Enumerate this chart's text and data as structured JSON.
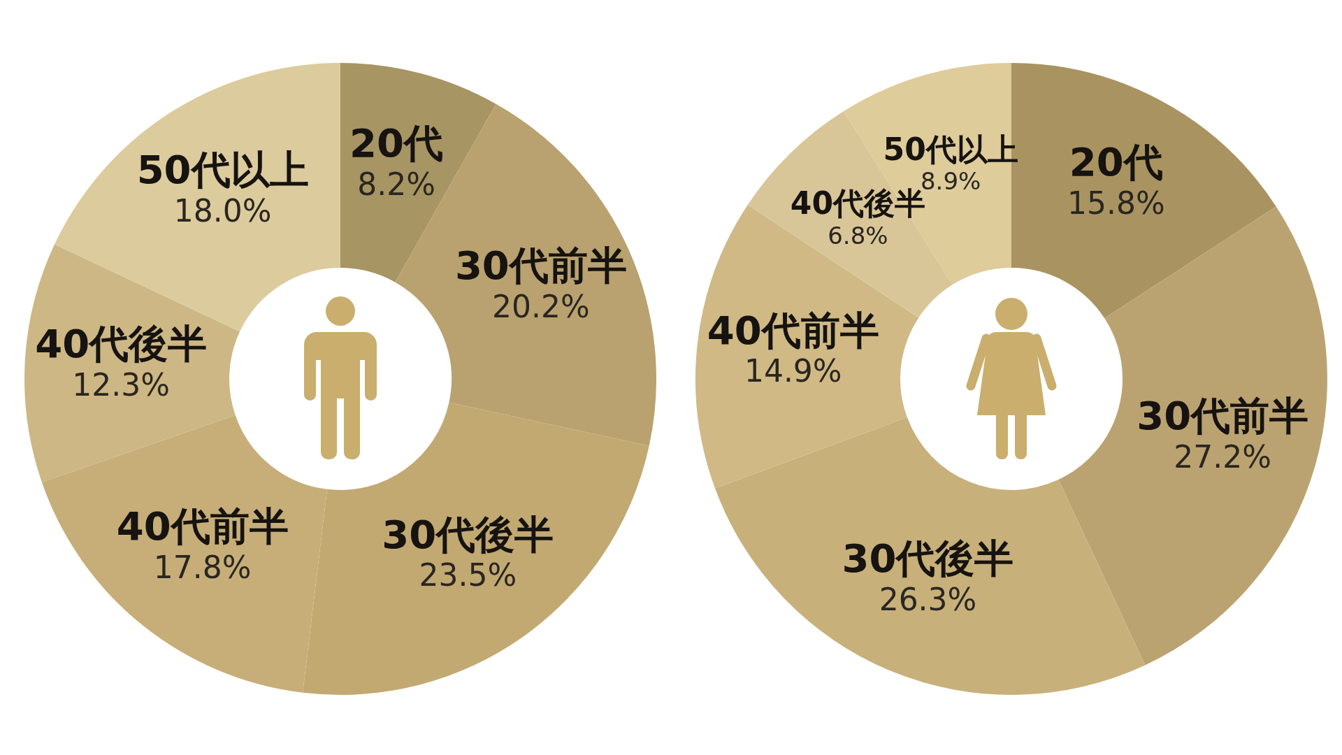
{
  "chart_data": [
    {
      "type": "donut",
      "categories": [
        "20代",
        "30代前半",
        "30代後半",
        "40代前半",
        "40代後半",
        "50代以上"
      ],
      "values": [
        8.2,
        20.2,
        23.5,
        17.8,
        12.3,
        18.0
      ],
      "colors": [
        "#a89564",
        "#b9a26f",
        "#c2a972",
        "#c7ae78",
        "#cdb784",
        "#dccb9d"
      ],
      "value_labels": [
        "8.2%",
        "20.2%",
        "23.5%",
        "17.8%",
        "12.3%",
        "18.0%"
      ]
    },
    {
      "type": "donut",
      "categories": [
        "20代",
        "30代前半",
        "30代後半",
        "40代前半",
        "40代後半",
        "50代以上"
      ],
      "values": [
        15.8,
        27.2,
        26.3,
        14.9,
        6.8,
        8.9
      ],
      "colors": [
        "#a99461",
        "#bba371",
        "#c8b07a",
        "#d0b985",
        "#d9c698",
        "#dfcc9b"
      ],
      "value_labels": [
        "15.8%",
        "27.2%",
        "26.3%",
        "14.9%",
        "6.8%",
        "8.9%"
      ]
    }
  ]
}
